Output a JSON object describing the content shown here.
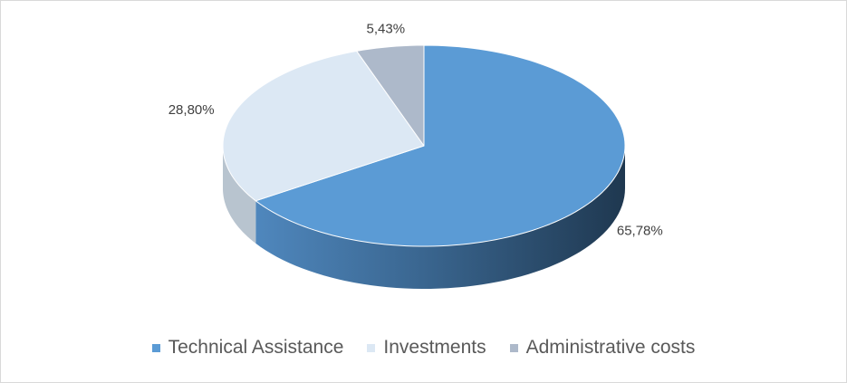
{
  "chart_data": {
    "type": "pie",
    "style": "3d",
    "slices": [
      {
        "label": "Technical Assistance",
        "value": 65.78,
        "display": "65,78%",
        "color": "#5b9bd5",
        "side_color": "#2e4a66"
      },
      {
        "label": "Investments",
        "value": 28.8,
        "display": "28,80%",
        "color": "#dce8f4",
        "side_color": "#b8c4cf"
      },
      {
        "label": "Administrative costs",
        "value": 5.43,
        "display": "5,43%",
        "color": "#adb9ca",
        "side_color": "#8896a8"
      }
    ],
    "legend_position": "bottom",
    "start_angle": "12 o'clock",
    "direction": "clockwise"
  }
}
